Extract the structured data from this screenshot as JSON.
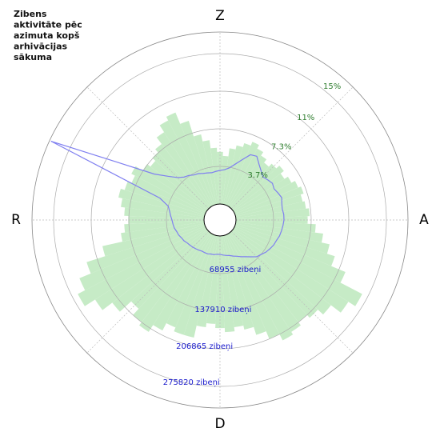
{
  "chart_data": {
    "type": "polar",
    "title": [
      "Zibens",
      "aktivitāte pēc",
      "azimuta kopš",
      "arhivācijas",
      "sākuma"
    ],
    "x": [
      0,
      5,
      10,
      15,
      20,
      25,
      30,
      35,
      40,
      45,
      50,
      55,
      60,
      65,
      70,
      75,
      80,
      85,
      90,
      95,
      100,
      105,
      110,
      115,
      120,
      125,
      130,
      135,
      140,
      145,
      150,
      155,
      160,
      165,
      170,
      175,
      180,
      185,
      190,
      195,
      200,
      205,
      210,
      215,
      220,
      225,
      230,
      235,
      240,
      245,
      250,
      255,
      260,
      265,
      270,
      275,
      280,
      285,
      290,
      295,
      300,
      305,
      310,
      315,
      320,
      325,
      330,
      335,
      340,
      345,
      350,
      355
    ],
    "angle_ticks": [
      {
        "value": 0,
        "label": "Z"
      },
      {
        "value": 90,
        "label": "A"
      },
      {
        "value": 180,
        "label": "D"
      },
      {
        "value": 270,
        "label": "R"
      }
    ],
    "rlim": [
      0,
      16.8
    ],
    "rticks": [
      {
        "value": 3.7,
        "label": "3.7%"
      },
      {
        "value": 7.3,
        "label": "7.3%"
      },
      {
        "value": 11,
        "label": "11%"
      },
      {
        "value": 15,
        "label": "15%"
      }
    ],
    "r2lim": [
      0,
      315400
    ],
    "r2ticks": [
      {
        "value": 68955,
        "label": "68955 zibeņi"
      },
      {
        "value": 137910,
        "label": "137910 zibeņi"
      },
      {
        "value": 206865,
        "label": "206865 zibeņi"
      },
      {
        "value": 275820,
        "label": "275820 zibeņi"
      }
    ],
    "series": [
      {
        "type": "bar",
        "axis": "r",
        "color": "#c6ebc6",
        "tick_color": "#2e7d2e",
        "values": [
          5.1,
          4.7,
          5.5,
          5.9,
          6.3,
          6.7,
          6.3,
          5.9,
          5.5,
          5.9,
          6.3,
          5.9,
          6.3,
          6.7,
          7.0,
          6.7,
          6.9,
          7.2,
          7.0,
          7.8,
          8.6,
          9.4,
          10.2,
          11.7,
          14.1,
          13.3,
          12.1,
          11.4,
          11.0,
          11.4,
          11.7,
          11.0,
          10.2,
          9.4,
          9.0,
          9.4,
          9.0,
          8.6,
          9.0,
          10.2,
          10.2,
          9.8,
          10.6,
          11.4,
          11.0,
          10.2,
          11.7,
          12.9,
          14.1,
          13.3,
          12.1,
          10.2,
          8.2,
          7.8,
          7.4,
          7.8,
          8.2,
          8.6,
          8.2,
          7.8,
          8.2,
          7.4,
          7.0,
          7.4,
          7.8,
          8.6,
          9.4,
          9.8,
          8.6,
          7.0,
          6.3,
          5.5
        ]
      },
      {
        "type": "line",
        "axis": "r2",
        "color": "#7f7ff0",
        "tick_color": "#1a1acc",
        "values": [
          61600,
          63100,
          67500,
          76300,
          88000,
          102700,
          105600,
          95400,
          88000,
          82200,
          85100,
          88000,
          85100,
          88000,
          91000,
          88000,
          86600,
          88000,
          88000,
          86600,
          85100,
          83600,
          80700,
          79200,
          76300,
          73400,
          69000,
          66000,
          58700,
          52800,
          48400,
          44000,
          41100,
          38100,
          36700,
          35200,
          33700,
          33700,
          35200,
          35200,
          36700,
          36700,
          36700,
          38100,
          39600,
          41100,
          42500,
          44000,
          46900,
          48400,
          51300,
          52800,
          55700,
          57200,
          58700,
          61600,
          64500,
          69000,
          88000,
          312500,
          176000,
          117400,
          95400,
          80700,
          73400,
          70400,
          66000,
          64500,
          61600,
          60100,
          58700,
          60100
        ]
      }
    ]
  }
}
